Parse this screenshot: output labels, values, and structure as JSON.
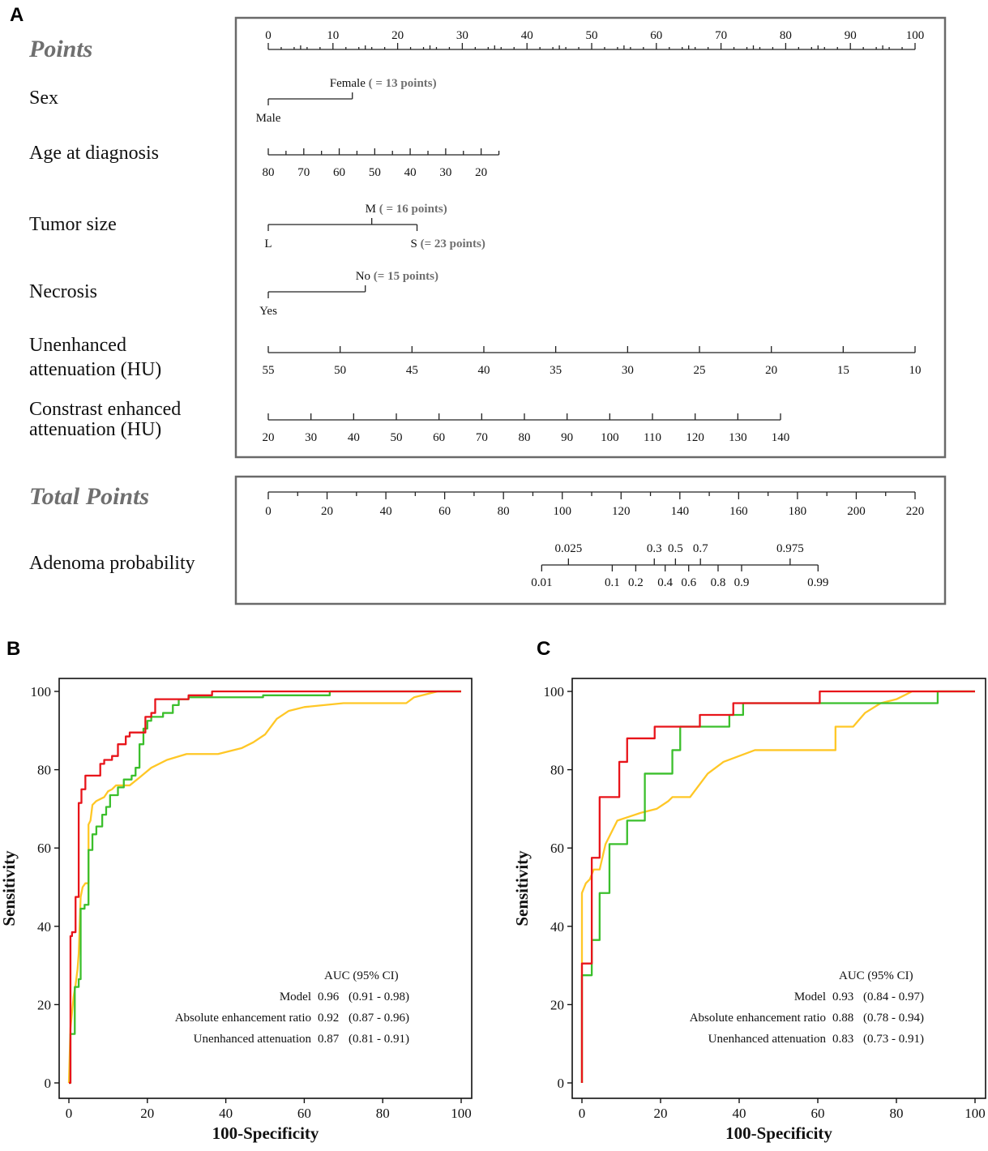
{
  "panel_letters": [
    "A",
    "B",
    "C"
  ],
  "chart_data": [
    {
      "type": "nomogram",
      "panel": "A",
      "rows": [
        {
          "label": "Points",
          "style": "header",
          "min": 0,
          "max": 100,
          "ticks": [
            0,
            10,
            20,
            30,
            40,
            50,
            60,
            70,
            80,
            90,
            100
          ],
          "minor": [
            5,
            15,
            25,
            35,
            45,
            55,
            65,
            75,
            85,
            95
          ],
          "minor2": [
            2,
            4,
            6,
            8,
            12,
            14,
            16,
            18,
            22,
            24,
            26,
            28,
            32,
            34,
            36,
            38,
            42,
            44,
            46,
            48,
            52,
            54,
            56,
            58,
            62,
            64,
            66,
            68,
            72,
            74,
            76,
            78,
            82,
            84,
            86,
            88,
            92,
            94,
            96,
            98
          ]
        },
        {
          "label": "Sex",
          "kind": "categorical",
          "max_points": 13,
          "levels": [
            {
              "label": "Male",
              "points": 0,
              "pos": "below"
            },
            {
              "label": "Female",
              "points": 13,
              "note": "( = 13 points)",
              "pos": "above"
            }
          ]
        },
        {
          "label": "Age at diagnosis",
          "kind": "continuous",
          "values": [
            80,
            75,
            70,
            65,
            60,
            55,
            50,
            45,
            40,
            35,
            30,
            25,
            20,
            15
          ],
          "labeled": [
            80,
            70,
            60,
            50,
            40,
            30,
            20
          ],
          "points_at": [
            0,
            2.74,
            5.49,
            8.23,
            10.97,
            13.71,
            16.46,
            19.2,
            21.94,
            24.69,
            27.43,
            30.17,
            32.91,
            35.66
          ]
        },
        {
          "label": "Tumor size",
          "kind": "categorical",
          "max_points": 23,
          "levels": [
            {
              "label": "L",
              "points": 0,
              "pos": "below"
            },
            {
              "label": "M",
              "points": 16,
              "note": "( = 16 points)",
              "pos": "above"
            },
            {
              "label": "S",
              "points": 23,
              "note": "(= 23 points)",
              "pos": "below"
            }
          ]
        },
        {
          "label": "Necrosis",
          "kind": "categorical",
          "max_points": 15,
          "levels": [
            {
              "label": "Yes",
              "points": 0,
              "pos": "below"
            },
            {
              "label": "No",
              "points": 15,
              "note": "(= 15 points)",
              "pos": "above"
            }
          ]
        },
        {
          "label": "Unenhanced attenuation (HU)",
          "label_lines": [
            "Unenhanced",
            "attenuation (HU)"
          ],
          "kind": "continuous",
          "values": [
            55,
            50,
            45,
            40,
            35,
            30,
            25,
            20,
            15,
            10
          ],
          "labeled": [
            55,
            50,
            45,
            40,
            35,
            30,
            25,
            20,
            15,
            10
          ],
          "points_at": [
            0,
            11.11,
            22.22,
            33.33,
            44.44,
            55.56,
            66.67,
            77.78,
            88.89,
            100
          ]
        },
        {
          "label": "Constrast enhanced attenuation (HU)",
          "label_lines": [
            "Constrast enhanced",
            "attenuation (HU)"
          ],
          "kind": "continuous",
          "values": [
            20,
            30,
            40,
            50,
            60,
            70,
            80,
            90,
            100,
            110,
            120,
            130,
            140
          ],
          "labeled": [
            20,
            30,
            40,
            50,
            60,
            70,
            80,
            90,
            100,
            110,
            120,
            130,
            140
          ],
          "points_at": [
            0,
            6.6,
            13.2,
            19.8,
            26.4,
            33.0,
            39.6,
            46.2,
            52.8,
            59.4,
            66.0,
            72.6,
            79.2
          ]
        }
      ],
      "total_points": {
        "label": "Total Points",
        "min": 0,
        "max": 220,
        "ticks": [
          0,
          20,
          40,
          60,
          80,
          100,
          120,
          140,
          160,
          180,
          200,
          220
        ],
        "minor": [
          10,
          30,
          50,
          70,
          90,
          110,
          130,
          150,
          170,
          190,
          210
        ]
      },
      "probability": {
        "label": "Adenoma probability",
        "marks": [
          {
            "p": "0.01",
            "total": 93.0,
            "pos": "below"
          },
          {
            "p": "0.025",
            "total": 102.1,
            "pos": "above"
          },
          {
            "p": "0.1",
            "total": 117.0,
            "pos": "below"
          },
          {
            "p": "0.2",
            "total": 125.0,
            "pos": "below"
          },
          {
            "p": "0.3",
            "total": 131.3,
            "pos": "above"
          },
          {
            "p": "0.4",
            "total": 135.0,
            "pos": "below"
          },
          {
            "p": "0.5",
            "total": 138.5,
            "pos": "above"
          },
          {
            "p": "0.6",
            "total": 143.0,
            "pos": "below"
          },
          {
            "p": "0.7",
            "total": 147.0,
            "pos": "above"
          },
          {
            "p": "0.8",
            "total": 153.0,
            "pos": "below"
          },
          {
            "p": "0.9",
            "total": 161.0,
            "pos": "below"
          },
          {
            "p": "0.975",
            "total": 177.5,
            "pos": "above"
          },
          {
            "p": "0.99",
            "total": 187.0,
            "pos": "below"
          }
        ]
      }
    },
    {
      "type": "line",
      "panel": "B",
      "xlabel": "100-Specificity",
      "ylabel": "Sensitivity",
      "xlim": [
        0,
        100
      ],
      "ylim": [
        0,
        100
      ],
      "xticks": [
        0,
        20,
        40,
        60,
        80,
        100
      ],
      "yticks": [
        0,
        20,
        40,
        60,
        80,
        100
      ],
      "legend_title": "AUC  (95% CI)",
      "legend_position": "bottom-right",
      "series": [
        {
          "name": "Model",
          "auc": "0.96",
          "ci": "(0.91 - 0.98)",
          "color": "#e8141a",
          "x": [
            0,
            0.4,
            0.4,
            0.8,
            0.8,
            1.7,
            1.7,
            2.5,
            2.5,
            3.2,
            3.2,
            4.2,
            4.2,
            5.0,
            5.0,
            8.0,
            8.0,
            9.0,
            9.0,
            11.0,
            11.0,
            12.5,
            12.5,
            14.5,
            14.5,
            15.5,
            15.5,
            19.5,
            19.5,
            21.0,
            21.0,
            22.0,
            22.0,
            30.5,
            30.5,
            36.5,
            36.5,
            68,
            68,
            100
          ],
          "y": [
            0,
            0,
            37.5,
            37.5,
            38.5,
            38.5,
            47.5,
            47.5,
            71.5,
            71.5,
            75,
            75,
            78.5,
            78.5,
            78.5,
            78.5,
            81.5,
            81.5,
            82.5,
            82.5,
            83.5,
            83.5,
            86.5,
            86.5,
            88.5,
            88.5,
            89.5,
            89.5,
            93.5,
            93.5,
            94.5,
            94.5,
            98,
            98,
            99,
            99,
            100,
            100,
            100,
            100
          ]
        },
        {
          "name": "Absolute enhancement ratio",
          "auc": "0.92",
          "ci": "(0.87 - 0.96)",
          "color": "#3bbf2c",
          "x": [
            0,
            0.4,
            0.4,
            1.5,
            1.5,
            2.5,
            2.5,
            3.0,
            3.0,
            4.0,
            4.0,
            5.0,
            5.0,
            6.0,
            6.0,
            7.0,
            7.0,
            8.5,
            8.5,
            9.5,
            9.5,
            10.5,
            10.5,
            12.5,
            12.5,
            14.0,
            14.0,
            16.0,
            16.0,
            17.0,
            17.0,
            18.0,
            18.0,
            19.0,
            19.0,
            20.0,
            20.0,
            21.0,
            21.0,
            24.0,
            24.0,
            26.5,
            26.5,
            28.0,
            28.0,
            30.5,
            30.5,
            49.5,
            49.5,
            66.5,
            66.5,
            69.0,
            69.0,
            100
          ],
          "y": [
            0,
            0,
            12.5,
            12.5,
            24.5,
            24.5,
            26.5,
            26.5,
            44.5,
            44.5,
            45.5,
            45.5,
            59.5,
            59.5,
            63.5,
            63.5,
            65.5,
            65.5,
            68.5,
            68.5,
            70.5,
            70.5,
            73.5,
            73.5,
            75.5,
            75.5,
            77.5,
            77.5,
            78.5,
            78.5,
            80.5,
            80.5,
            86.5,
            86.5,
            90.5,
            90.5,
            92.5,
            92.5,
            93.5,
            93.5,
            94.5,
            94.5,
            96.5,
            96.5,
            98,
            98,
            98.5,
            98.5,
            99,
            99,
            100,
            100,
            100,
            100
          ]
        },
        {
          "name": "Unenhanced attenuation",
          "auc": "0.87",
          "ci": "(0.81 - 0.91)",
          "color": "#ffc726",
          "x": [
            0,
            0.4,
            0.8,
            1.2,
            1.7,
            2.2,
            2.5,
            3.0,
            3.5,
            4.2,
            5.0,
            5.0,
            5.5,
            6.0,
            7.0,
            8.0,
            9.0,
            10.0,
            11.0,
            12.0,
            14.5,
            15.5,
            18.0,
            21.0,
            25.0,
            30.0,
            38.0,
            44.0,
            47.0,
            50.0,
            53.0,
            56.0,
            60.0,
            70.0,
            86.0,
            88.0,
            94.0,
            100
          ],
          "y": [
            0,
            14,
            18,
            22,
            25,
            29,
            33,
            47.5,
            50,
            51,
            51,
            66,
            67,
            71,
            72,
            72.5,
            73,
            74.5,
            75,
            76,
            76,
            76,
            78,
            80.5,
            82.5,
            84,
            84,
            85.5,
            87,
            89,
            93,
            95,
            96,
            97,
            97,
            98.5,
            100,
            100
          ]
        }
      ]
    },
    {
      "type": "line",
      "panel": "C",
      "xlabel": "100-Specificity",
      "ylabel": "Sensitivity",
      "xlim": [
        0,
        100
      ],
      "ylim": [
        0,
        100
      ],
      "xticks": [
        0,
        20,
        40,
        60,
        80,
        100
      ],
      "yticks": [
        0,
        20,
        40,
        60,
        80,
        100
      ],
      "legend_title": "AUC  (95% CI)",
      "legend_position": "bottom-right",
      "series": [
        {
          "name": "Model",
          "auc": "0.93",
          "ci": "(0.84 - 0.97)",
          "color": "#e8141a",
          "x": [
            0,
            0,
            0,
            2.5,
            2.5,
            4.5,
            4.5,
            9.5,
            9.5,
            11.5,
            11.5,
            18.5,
            18.5,
            30,
            30,
            38.5,
            38.5,
            40.5,
            40.5,
            60.5,
            60.5,
            83.5,
            83.5,
            100
          ],
          "y": [
            0,
            12,
            30.5,
            30.5,
            57.5,
            57.5,
            73,
            73,
            82,
            82,
            88,
            88,
            91,
            91,
            94,
            94,
            97,
            97,
            97,
            97,
            100,
            100,
            100,
            100
          ]
        },
        {
          "name": "Absolute enhancement ratio",
          "auc": "0.88",
          "ci": "(0.78 - 0.94)",
          "color": "#3bbf2c",
          "x": [
            0,
            0,
            2.5,
            2.5,
            4.5,
            4.5,
            7,
            7,
            11.5,
            11.5,
            16,
            16,
            23,
            23,
            25,
            25,
            37.5,
            37.5,
            41,
            41,
            90.5,
            90.5,
            100
          ],
          "y": [
            0,
            27.5,
            27.5,
            36.5,
            36.5,
            48.5,
            48.5,
            61,
            61,
            67,
            67,
            79,
            79,
            85,
            85,
            91,
            91,
            94,
            94,
            97,
            97,
            100,
            100
          ]
        },
        {
          "name": "Unenhanced attenuation",
          "auc": "0.83",
          "ci": "(0.73 - 0.91)",
          "color": "#ffc726",
          "x": [
            0,
            0,
            1,
            2,
            3,
            4.5,
            6,
            7.5,
            9,
            12,
            15,
            19,
            22,
            23,
            27.5,
            32,
            36,
            44,
            47,
            54,
            64.5,
            64.5,
            69,
            72,
            76,
            80,
            84,
            100
          ],
          "y": [
            0,
            48.5,
            51,
            52,
            54.5,
            54.5,
            61,
            64,
            67,
            68,
            69,
            70,
            72,
            73,
            73,
            79,
            82,
            85,
            85,
            85,
            85,
            91,
            91,
            94.5,
            97,
            98,
            100,
            100
          ]
        }
      ]
    }
  ]
}
